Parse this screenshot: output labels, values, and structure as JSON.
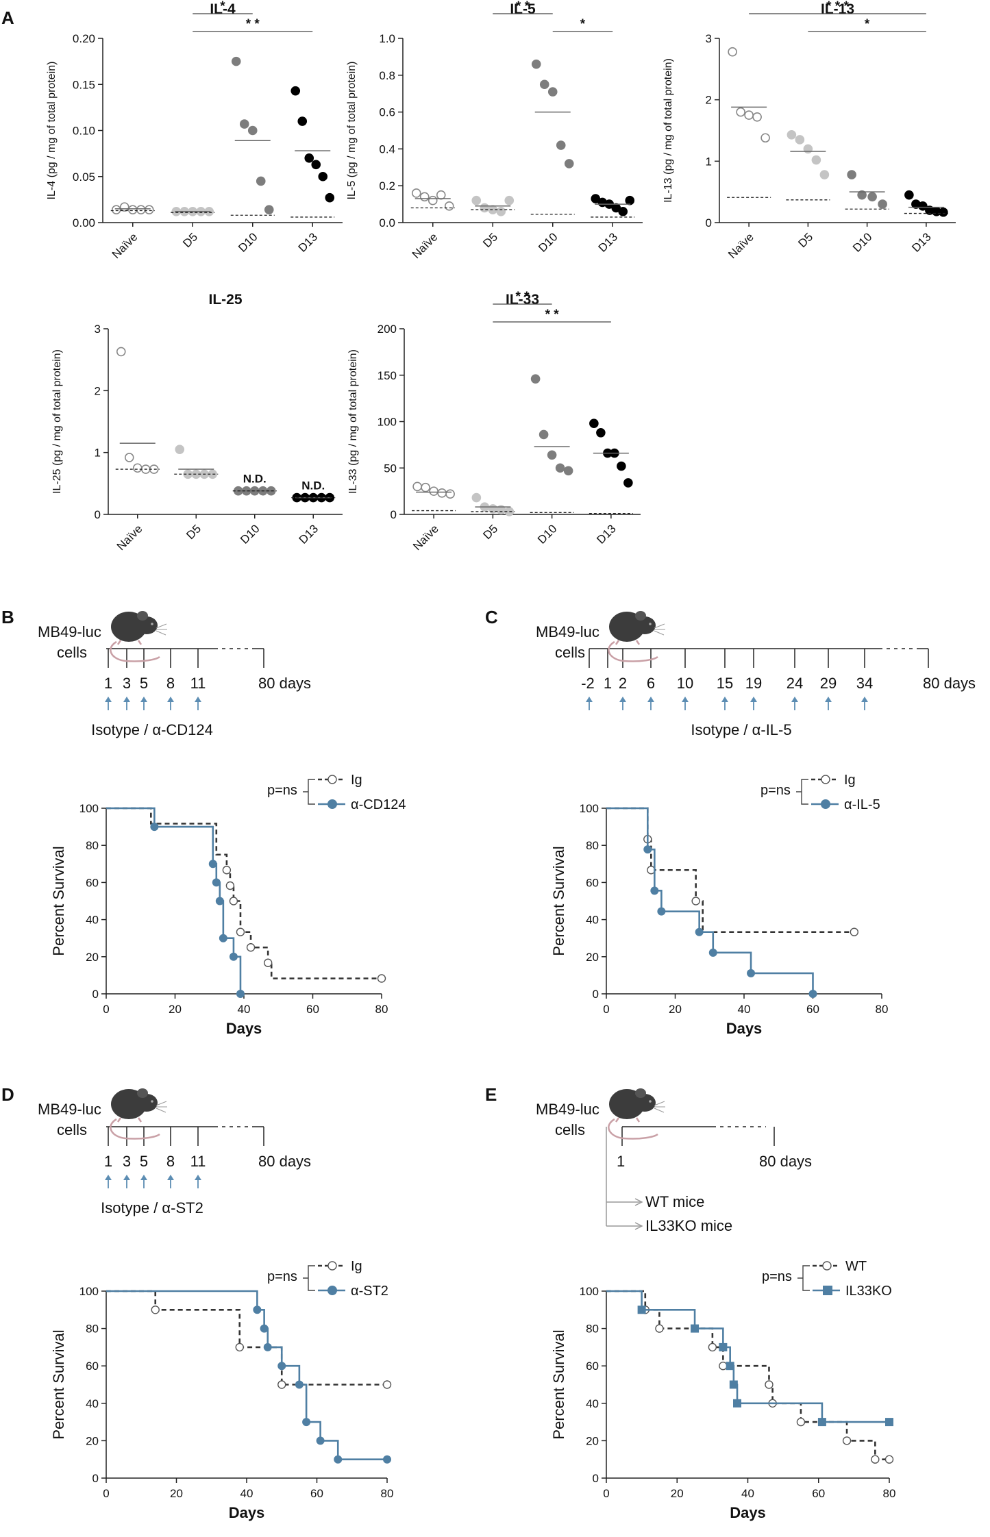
{
  "colors": {
    "naive": "#ffffff",
    "naive_stroke": "#888888",
    "d5": "#c4c4c4",
    "d10": "#7d7d7d",
    "d13": "#000000",
    "treated": "#4f7fa3",
    "control": "#333333",
    "arrow": "#5c8db3"
  },
  "panel_labels": {
    "A": "A",
    "B": "B",
    "C": "C",
    "D": "D",
    "E": "E"
  },
  "chart_data": [
    {
      "id": "il4",
      "type": "scatter",
      "title": "IL-4",
      "ylabel": "IL-4 (pg / mg of total protein)",
      "ylim": [
        0,
        0.2
      ],
      "yticks": [
        "0.00",
        "0.05",
        "0.10",
        "0.15",
        "0.20"
      ],
      "categories": [
        "Naïve",
        "D5",
        "D10",
        "D13"
      ],
      "points": [
        [
          0.014,
          0.017,
          0.014,
          0.014,
          0.014
        ],
        [
          0.012,
          0.012,
          0.012,
          0.012,
          0.012
        ],
        [
          0.175,
          0.107,
          0.1,
          0.045,
          0.014
        ],
        [
          0.143,
          0.11,
          0.07,
          0.063,
          0.05,
          0.027
        ]
      ],
      "means": [
        0.015,
        0.012,
        0.089,
        0.078
      ],
      "lods": [
        0.013,
        0.011,
        0.008,
        0.006
      ],
      "sig": [
        {
          "from": 1,
          "to": 2,
          "label": "*"
        },
        {
          "from": 1,
          "to": 3,
          "label": "* *"
        }
      ]
    },
    {
      "id": "il5",
      "type": "scatter",
      "title": "IL-5",
      "ylabel": "IL-5 (pg / mg of total protein)",
      "ylim": [
        0,
        1.0
      ],
      "yticks": [
        "0.0",
        "0.2",
        "0.4",
        "0.6",
        "0.8",
        "1.0"
      ],
      "categories": [
        "Naïve",
        "D5",
        "D10",
        "D13"
      ],
      "points": [
        [
          0.16,
          0.14,
          0.12,
          0.15,
          0.09
        ],
        [
          0.12,
          0.08,
          0.07,
          0.06,
          0.12
        ],
        [
          0.86,
          0.75,
          0.71,
          0.42,
          0.32
        ],
        [
          0.13,
          0.11,
          0.1,
          0.08,
          0.06,
          0.12
        ]
      ],
      "means": [
        0.13,
        0.09,
        0.6,
        0.1
      ],
      "lods": [
        0.08,
        0.07,
        0.045,
        0.03
      ],
      "sig": [
        {
          "from": 1,
          "to": 2,
          "label": "* *"
        },
        {
          "from": 2,
          "to": 3,
          "label": "*"
        }
      ]
    },
    {
      "id": "il13",
      "type": "scatter",
      "title": "IL-13",
      "ylabel": "IL-13 (pg / mg of total protein)",
      "ylim": [
        0,
        3
      ],
      "yticks": [
        "0",
        "1",
        "2",
        "3"
      ],
      "categories": [
        "Naïve",
        "D5",
        "D10",
        "D13"
      ],
      "points": [
        [
          2.78,
          1.8,
          1.75,
          1.72,
          1.38
        ],
        [
          1.43,
          1.35,
          1.2,
          1.02,
          0.78
        ],
        [
          0.78,
          0.45,
          0.42,
          0.3
        ],
        [
          0.45,
          0.3,
          0.27,
          0.2,
          0.18,
          0.17
        ]
      ],
      "means": [
        1.88,
        1.16,
        0.5,
        0.25
      ],
      "lods": [
        0.41,
        0.37,
        0.22,
        0.15
      ],
      "sig": [
        {
          "from": 0,
          "to": 3,
          "label": "* * *"
        },
        {
          "from": 1,
          "to": 3,
          "label": "*"
        }
      ]
    },
    {
      "id": "il25",
      "type": "scatter",
      "title": "IL-25",
      "ylabel": "IL-25 (pg / mg of total protein)",
      "ylim": [
        0,
        3
      ],
      "yticks": [
        "0",
        "1",
        "2",
        "3"
      ],
      "categories": [
        "Naïve",
        "D5",
        "D10",
        "D13"
      ],
      "points": [
        [
          2.63,
          0.92,
          0.75,
          0.73,
          0.73
        ],
        [
          1.05,
          0.65,
          0.65,
          0.65,
          0.65
        ],
        [
          0.38,
          0.38,
          0.38,
          0.38,
          0.38
        ],
        [
          0.27,
          0.27,
          0.27,
          0.27,
          0.27
        ]
      ],
      "means": [
        1.15,
        0.73,
        0.38,
        0.27
      ],
      "lods": [
        0.73,
        0.65,
        0.38,
        0.27
      ],
      "nd": [
        "",
        "",
        "N.D.",
        "N.D."
      ],
      "sig": []
    },
    {
      "id": "il33",
      "type": "scatter",
      "title": "IL-33",
      "ylabel": "IL-33 (pg / mg of total protein)",
      "ylim": [
        0,
        200
      ],
      "yticks": [
        "0",
        "50",
        "100",
        "150",
        "200"
      ],
      "categories": [
        "Naïve",
        "D5",
        "D10",
        "D13"
      ],
      "points": [
        [
          30,
          29,
          25,
          23,
          22
        ],
        [
          18,
          8,
          6,
          5,
          3
        ],
        [
          146,
          86,
          64,
          50,
          47
        ],
        [
          98,
          88,
          66,
          66,
          52,
          34
        ]
      ],
      "means": [
        24,
        8,
        73,
        66
      ],
      "lods": [
        4,
        3,
        2,
        1
      ],
      "sig": [
        {
          "from": 1,
          "to": 2,
          "label": "* *"
        },
        {
          "from": 1,
          "to": 3,
          "label": "* *"
        }
      ]
    },
    {
      "id": "survB",
      "type": "line",
      "xlabel": "Days",
      "ylabel": "Percent Survival",
      "xlim": [
        0,
        80
      ],
      "ylim": [
        0,
        100
      ],
      "xticks": [
        "0",
        "20",
        "40",
        "60",
        "80"
      ],
      "yticks": [
        "0",
        "20",
        "40",
        "60",
        "80",
        "100"
      ],
      "p_label": "p=ns",
      "series": [
        {
          "name": "Ig",
          "style": "dashed",
          "steps": [
            [
              0,
              100
            ],
            [
              13,
              91.7
            ],
            [
              32,
              75
            ],
            [
              35,
              66.7
            ],
            [
              36,
              58.3
            ],
            [
              37,
              50
            ],
            [
              39,
              33.3
            ],
            [
              42,
              25
            ],
            [
              47,
              16.7
            ],
            [
              48,
              8.3
            ],
            [
              80,
              8.3
            ]
          ],
          "markers": [
            [
              35,
              66.7
            ],
            [
              36,
              58.3
            ],
            [
              37,
              50
            ],
            [
              39,
              33.3
            ],
            [
              42,
              25
            ],
            [
              47,
              16.7
            ],
            [
              80,
              8.3
            ]
          ]
        },
        {
          "name": "α-CD124",
          "style": "solid",
          "steps": [
            [
              0,
              100
            ],
            [
              14,
              90
            ],
            [
              31,
              70
            ],
            [
              32,
              60
            ],
            [
              33,
              50
            ],
            [
              34,
              30
            ],
            [
              37,
              20
            ],
            [
              39,
              0
            ]
          ],
          "markers": [
            [
              14,
              90
            ],
            [
              31,
              70
            ],
            [
              32,
              60
            ],
            [
              33,
              50
            ],
            [
              34,
              30
            ],
            [
              37,
              20
            ],
            [
              39,
              0
            ]
          ]
        }
      ],
      "timeline": {
        "cells": "MB49-luc\ncells",
        "days": [
          "1",
          "3",
          "5",
          "8",
          "11"
        ],
        "end": "80",
        "unit": "days",
        "treatment": "Isotype / α-CD124"
      }
    },
    {
      "id": "survC",
      "type": "line",
      "xlabel": "Days",
      "ylabel": "Percent Survival",
      "xlim": [
        0,
        80
      ],
      "ylim": [
        0,
        100
      ],
      "xticks": [
        "0",
        "20",
        "40",
        "60",
        "80"
      ],
      "yticks": [
        "0",
        "20",
        "40",
        "60",
        "80",
        "100"
      ],
      "p_label": "p=ns",
      "series": [
        {
          "name": "Ig",
          "style": "dashed",
          "steps": [
            [
              0,
              100
            ],
            [
              12,
              83.3
            ],
            [
              13,
              66.7
            ],
            [
              20,
              66.7
            ],
            [
              26,
              50
            ],
            [
              28,
              33.3
            ],
            [
              72,
              33.3
            ]
          ],
          "markers": [
            [
              12,
              83.3
            ],
            [
              13,
              66.7
            ],
            [
              26,
              50
            ],
            [
              72,
              33.3
            ]
          ]
        },
        {
          "name": "α-IL-5",
          "style": "solid",
          "steps": [
            [
              0,
              100
            ],
            [
              12,
              77.8
            ],
            [
              14,
              55.6
            ],
            [
              16,
              44.4
            ],
            [
              27,
              33.3
            ],
            [
              31,
              22.2
            ],
            [
              42,
              11.1
            ],
            [
              60,
              0
            ]
          ],
          "markers": [
            [
              12,
              77.8
            ],
            [
              14,
              55.6
            ],
            [
              16,
              44.4
            ],
            [
              27,
              33.3
            ],
            [
              31,
              22.2
            ],
            [
              42,
              11.1
            ],
            [
              60,
              0
            ]
          ]
        }
      ],
      "timeline": {
        "cells": "MB49-luc\ncells",
        "days": [
          "-2",
          "1",
          "2",
          "6",
          "10",
          "15",
          "19",
          "24",
          "29",
          "34"
        ],
        "end": "80",
        "unit": "days",
        "treatment": "Isotype / α-IL-5"
      }
    },
    {
      "id": "survD",
      "type": "line",
      "xlabel": "Days",
      "ylabel": "Percent Survival",
      "xlim": [
        0,
        80
      ],
      "ylim": [
        0,
        100
      ],
      "xticks": [
        "0",
        "20",
        "40",
        "60",
        "80"
      ],
      "yticks": [
        "0",
        "20",
        "40",
        "60",
        "80",
        "100"
      ],
      "p_label": "p=ns",
      "series": [
        {
          "name": "Ig",
          "style": "dashed",
          "steps": [
            [
              0,
              100
            ],
            [
              14,
              90
            ],
            [
              38,
              70
            ],
            [
              46,
              70
            ],
            [
              50,
              50
            ],
            [
              80,
              50
            ]
          ],
          "markers": [
            [
              14,
              90
            ],
            [
              38,
              70
            ],
            [
              50,
              50
            ],
            [
              80,
              50
            ]
          ]
        },
        {
          "name": "α-ST2",
          "style": "solid",
          "steps": [
            [
              0,
              100
            ],
            [
              43,
              90
            ],
            [
              45,
              80
            ],
            [
              46,
              70
            ],
            [
              50,
              60
            ],
            [
              55,
              50
            ],
            [
              57,
              30
            ],
            [
              61,
              20
            ],
            [
              66,
              10
            ],
            [
              80,
              10
            ]
          ],
          "markers": [
            [
              43,
              90
            ],
            [
              45,
              80
            ],
            [
              46,
              70
            ],
            [
              50,
              60
            ],
            [
              55,
              50
            ],
            [
              57,
              30
            ],
            [
              61,
              20
            ],
            [
              66,
              10
            ],
            [
              80,
              10
            ]
          ]
        }
      ],
      "timeline": {
        "cells": "MB49-luc\ncells",
        "days": [
          "1",
          "3",
          "5",
          "8",
          "11"
        ],
        "end": "80",
        "unit": "days",
        "treatment": "Isotype / α-ST2"
      }
    },
    {
      "id": "survE",
      "type": "line",
      "xlabel": "Days",
      "ylabel": "Percent Survival",
      "xlim": [
        0,
        80
      ],
      "ylim": [
        0,
        100
      ],
      "xticks": [
        "0",
        "20",
        "40",
        "60",
        "80"
      ],
      "yticks": [
        "0",
        "20",
        "40",
        "60",
        "80",
        "100"
      ],
      "p_label": "p=ns",
      "series": [
        {
          "name": "WT",
          "style": "dashed",
          "marker": "circle",
          "steps": [
            [
              0,
              100
            ],
            [
              11,
              90
            ],
            [
              15,
              80
            ],
            [
              30,
              70
            ],
            [
              33,
              60
            ],
            [
              46,
              50
            ],
            [
              47,
              40
            ],
            [
              55,
              30
            ],
            [
              68,
              20
            ],
            [
              76,
              10
            ],
            [
              80,
              10
            ]
          ],
          "markers": [
            [
              11,
              90
            ],
            [
              15,
              80
            ],
            [
              30,
              70
            ],
            [
              33,
              60
            ],
            [
              46,
              50
            ],
            [
              47,
              40
            ],
            [
              55,
              30
            ],
            [
              68,
              20
            ],
            [
              76,
              10
            ],
            [
              80,
              10
            ]
          ]
        },
        {
          "name": "IL33KO",
          "style": "solid",
          "marker": "square",
          "steps": [
            [
              0,
              100
            ],
            [
              10,
              90
            ],
            [
              25,
              80
            ],
            [
              33,
              70
            ],
            [
              35,
              60
            ],
            [
              36,
              50
            ],
            [
              37,
              40
            ],
            [
              61,
              30
            ],
            [
              80,
              30
            ]
          ],
          "markers": [
            [
              10,
              90
            ],
            [
              25,
              80
            ],
            [
              33,
              70
            ],
            [
              35,
              60
            ],
            [
              36,
              50
            ],
            [
              37,
              40
            ],
            [
              61,
              30
            ],
            [
              80,
              30
            ]
          ]
        }
      ],
      "timeline": {
        "cells": "MB49-luc\ncells",
        "days": [
          "1"
        ],
        "end": "80",
        "unit": "days",
        "branches": [
          "WT mice",
          "IL33KO mice"
        ]
      }
    }
  ]
}
